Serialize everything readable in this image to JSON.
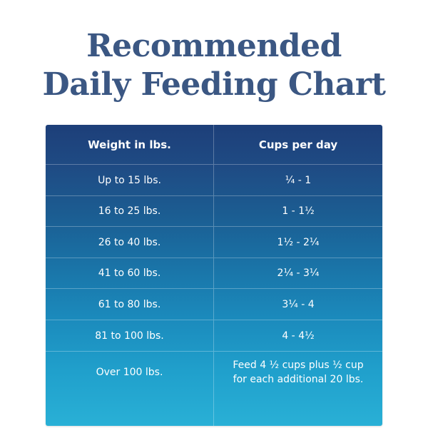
{
  "title": {
    "line1": "Recommended",
    "line2": "Daily Feeding Chart"
  },
  "table": {
    "headers": {
      "weight": "Weight in lbs.",
      "cups": "Cups per day"
    },
    "rows": [
      {
        "weight": "Up to 15 lbs.",
        "cups": "¼ - 1"
      },
      {
        "weight": "16 to 25 lbs.",
        "cups": "1 - 1½"
      },
      {
        "weight": "26 to 40 lbs.",
        "cups": "1½ - 2¼"
      },
      {
        "weight": "41 to 60 lbs.",
        "cups": "2¼ - 3¼"
      },
      {
        "weight": "61 to 80 lbs.",
        "cups": "3¼ - 4"
      },
      {
        "weight": "81 to 100 lbs.",
        "cups": "4 - 4½"
      },
      {
        "weight": "Over 100 lbs.",
        "cups": "Feed 4 ½ cups plus ½ cup for each additional 20 lbs."
      }
    ]
  }
}
